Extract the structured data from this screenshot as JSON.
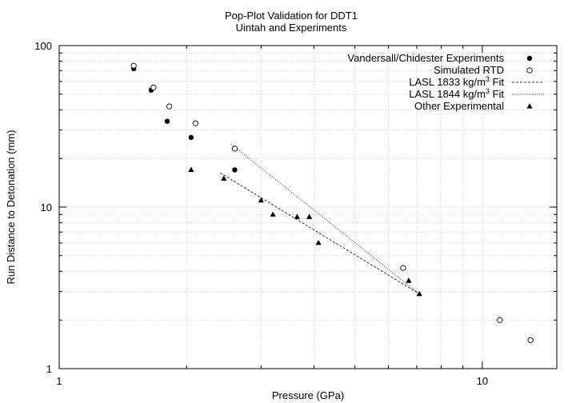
{
  "chart_data": {
    "type": "scatter",
    "title": "Pop-Plot Validation for DDT1",
    "subtitle": "Uintah and Experiments",
    "xlabel": "Pressure (GPa)",
    "ylabel": "Run Distance to Detonation (mm)",
    "xscale": "log",
    "yscale": "log",
    "xlim": [
      1,
      15
    ],
    "ylim": [
      1,
      100
    ],
    "xticks": [
      1,
      10
    ],
    "xtick_labels": [
      "1",
      "10"
    ],
    "yticks": [
      1,
      10,
      100
    ],
    "ytick_labels": [
      "1",
      "10",
      "100"
    ],
    "grid": true,
    "legend_position": "top-right",
    "series": [
      {
        "name": "Vandersall/Chidester Experiments",
        "marker": "filled-circle",
        "x": [
          1.5,
          1.65,
          1.8,
          2.05,
          2.6
        ],
        "y": [
          72,
          53,
          34,
          27,
          17
        ]
      },
      {
        "name": "Simulated RTD",
        "marker": "open-circle",
        "x": [
          1.5,
          1.67,
          1.82,
          2.1,
          2.6,
          6.5,
          11,
          13
        ],
        "y": [
          75,
          55,
          42,
          33,
          23,
          4.2,
          2.0,
          1.5
        ]
      },
      {
        "name": "LASL 1833 kg/m3 Fit",
        "line_style": "dashed",
        "x": [
          2.4,
          7.1
        ],
        "y": [
          16.3,
          2.9
        ]
      },
      {
        "name": "LASL 1844 kg/m3 Fit",
        "line_style": "dotted",
        "x": [
          2.55,
          7.1
        ],
        "y": [
          24.5,
          2.9
        ]
      },
      {
        "name": "Other Experimental",
        "marker": "filled-triangle",
        "x": [
          2.05,
          2.45,
          3.0,
          3.2,
          3.65,
          3.9,
          4.1,
          6.7,
          7.1
        ],
        "y": [
          17,
          15,
          11,
          9,
          8.7,
          8.7,
          6,
          3.5,
          2.9
        ]
      }
    ]
  }
}
